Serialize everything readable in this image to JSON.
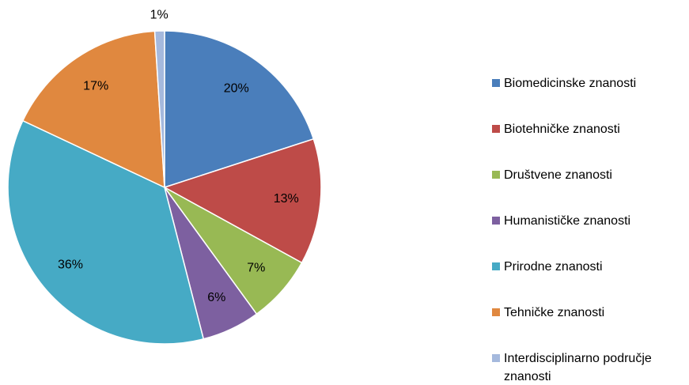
{
  "chart_data": {
    "type": "pie",
    "categories": [
      "Biomedicinske znanosti",
      "Biotehničke znanosti",
      "Društvene znanosti",
      "Humanističke znanosti",
      "Prirodne znanosti",
      "Tehničke znanosti",
      "Interdisciplinarno područje znanosti"
    ],
    "values": [
      20,
      13,
      7,
      6,
      36,
      17,
      1
    ],
    "value_labels": [
      "20%",
      "13%",
      "7%",
      "6%",
      "36%",
      "17%",
      "1%"
    ],
    "colors": [
      "#4a7ebb",
      "#be4b48",
      "#98b954",
      "#7d60a0",
      "#46aac5",
      "#e0883f",
      "#a5b9dd"
    ],
    "legend": "right"
  }
}
